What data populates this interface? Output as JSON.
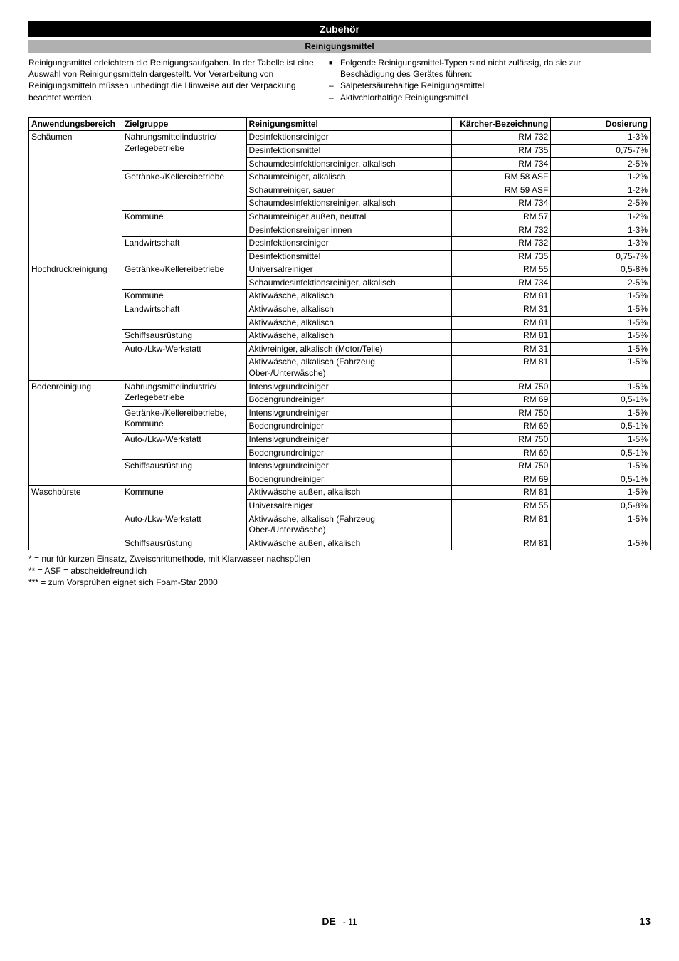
{
  "title": "Zubehör",
  "subtitle": "Reinigungsmittel",
  "intro_left": "Reinigungsmittel erleichtern die Reinigungsaufgaben. In der Tabelle ist eine Auswahl von Reinigungsmitteln dargestellt. Vor Verarbeitung von Reinigungsmitteln müssen unbedingt die Hinweise auf der Verpackung beachtet werden.",
  "intro_bullet": "Folgende Reinigungsmittel-Typen sind nicht zulässig, da sie zur Beschädigung des Gerätes führen:",
  "intro_dash1": "Salpetersäurehaltige Reinigungsmittel",
  "intro_dash2": "Aktivchlorhaltige Reinigungsmittel",
  "headers": {
    "anw": "Anwendungsbereich",
    "ziel": "Zielgruppe",
    "rein": "Reinigungsmittel",
    "bez": "Kärcher-Bezeichnung",
    "dos": "Dosierung"
  },
  "rows": [
    {
      "anw": "Schäumen",
      "anw_rs": 10,
      "ziel": "Nahrungsmittelindustrie/ Zerlegebetriebe",
      "ziel_rs": 3,
      "rein": "Desinfektionsreiniger",
      "bez": "RM 732",
      "dos": "1-3%"
    },
    {
      "rein": "Desinfektionsmittel",
      "bez": "RM 735",
      "dos": "0,75-7%"
    },
    {
      "rein": "Schaumdesinfektionsreiniger, alkalisch",
      "bez": "RM 734",
      "dos": "2-5%"
    },
    {
      "ziel": "Getränke-/Kellereibetriebe",
      "ziel_rs": 3,
      "rein": "Schaumreiniger, alkalisch",
      "bez": "RM 58 ASF",
      "dos": "1-2%"
    },
    {
      "rein": "Schaumreiniger, sauer",
      "bez": "RM 59 ASF",
      "dos": "1-2%"
    },
    {
      "rein": "Schaumdesinfektionsreiniger, alkalisch",
      "bez": "RM 734",
      "dos": "2-5%"
    },
    {
      "ziel": "Kommune",
      "ziel_rs": 2,
      "rein": "Schaumreiniger außen, neutral",
      "bez": "RM 57",
      "dos": "1-2%"
    },
    {
      "rein": "Desinfektionsreiniger innen",
      "bez": "RM 732",
      "dos": "1-3%"
    },
    {
      "ziel": "Landwirtschaft",
      "ziel_rs": 2,
      "rein": "Desinfektionsreiniger",
      "bez": "RM 732",
      "dos": "1-3%"
    },
    {
      "rein": "Desinfektionsmittel",
      "bez": "RM 735",
      "dos": "0,75-7%"
    },
    {
      "anw": "Hochdruckreinigung",
      "anw_rs": 8,
      "ziel": "Getränke-/Kellereibetriebe",
      "ziel_rs": 2,
      "rein": "Universalreiniger",
      "bez": "RM 55",
      "dos": "0,5-8%"
    },
    {
      "rein": "Schaumdesinfektionsreiniger, alkalisch",
      "bez": "RM 734",
      "dos": "2-5%"
    },
    {
      "ziel": "Kommune",
      "ziel_rs": 1,
      "rein": "Aktivwäsche, alkalisch",
      "bez": "RM 81",
      "dos": "1-5%"
    },
    {
      "ziel": "Landwirtschaft",
      "ziel_rs": 2,
      "rein": "Aktivwäsche, alkalisch",
      "bez": "RM 31",
      "dos": "1-5%"
    },
    {
      "rein": "Aktivwäsche, alkalisch",
      "bez": "RM 81",
      "dos": "1-5%"
    },
    {
      "ziel": "Schiffsausrüstung",
      "ziel_rs": 1,
      "rein": "Aktivwäsche, alkalisch",
      "bez": "RM 81",
      "dos": "1-5%"
    },
    {
      "ziel": "Auto-/Lkw-Werkstatt",
      "ziel_rs": 2,
      "rein": "Aktivreiniger, alkalisch (Motor/Teile)",
      "bez": "RM 31",
      "dos": "1-5%"
    },
    {
      "rein": "Aktivwäsche, alkalisch (Fahrzeug Ober-/Unterwäsche)",
      "bez": "RM 81",
      "dos": "1-5%"
    },
    {
      "anw": "Bodenreinigung",
      "anw_rs": 8,
      "ziel": "Nahrungsmittelindustrie/ Zerlegebetriebe",
      "ziel_rs": 2,
      "rein": "Intensivgrundreiniger",
      "bez": "RM 750",
      "dos": "1-5%"
    },
    {
      "rein": "Bodengrundreiniger",
      "bez": "RM 69",
      "dos": "0,5-1%"
    },
    {
      "ziel": "Getränke-/Kellereibetriebe, Kommune",
      "ziel_rs": 2,
      "rein": "Intensivgrundreiniger",
      "bez": "RM 750",
      "dos": "1-5%"
    },
    {
      "rein": "Bodengrundreiniger",
      "bez": "RM 69",
      "dos": "0,5-1%"
    },
    {
      "ziel": "Auto-/Lkw-Werkstatt",
      "ziel_rs": 2,
      "rein": "Intensivgrundreiniger",
      "bez": "RM 750",
      "dos": "1-5%"
    },
    {
      "rein": "Bodengrundreiniger",
      "bez": "RM 69",
      "dos": "0,5-1%"
    },
    {
      "ziel": "Schiffsausrüstung",
      "ziel_rs": 2,
      "rein": "Intensivgrundreiniger",
      "bez": "RM 750",
      "dos": "1-5%"
    },
    {
      "rein": "Bodengrundreiniger",
      "bez": "RM 69",
      "dos": "0,5-1%"
    },
    {
      "anw": "Waschbürste",
      "anw_rs": 4,
      "ziel": "Kommune",
      "ziel_rs": 2,
      "rein": "Aktivwäsche außen, alkalisch",
      "bez": "RM 81",
      "dos": "1-5%"
    },
    {
      "rein": "Universalreiniger",
      "bez": "RM 55",
      "dos": "0,5-8%"
    },
    {
      "ziel": "Auto-/Lkw-Werkstatt",
      "ziel_rs": 1,
      "rein": "Aktivwäsche, alkalisch (Fahrzeug Ober-/Unterwäsche)",
      "bez": "RM 81",
      "dos": "1-5%"
    },
    {
      "ziel": "Schiffsausrüstung",
      "ziel_rs": 1,
      "rein": "Aktivwäsche außen, alkalisch",
      "bez": "RM 81",
      "dos": "1-5%"
    }
  ],
  "foot1": "* = nur für kurzen Einsatz, Zweischrittmethode, mit Klarwasser nachspülen",
  "foot2": "** = ASF = abscheidefreundlich",
  "foot3": "*** = zum Vorsprühen eignet sich Foam-Star 2000",
  "footer_lang": "DE",
  "footer_sub": "- 11",
  "footer_page": "13"
}
